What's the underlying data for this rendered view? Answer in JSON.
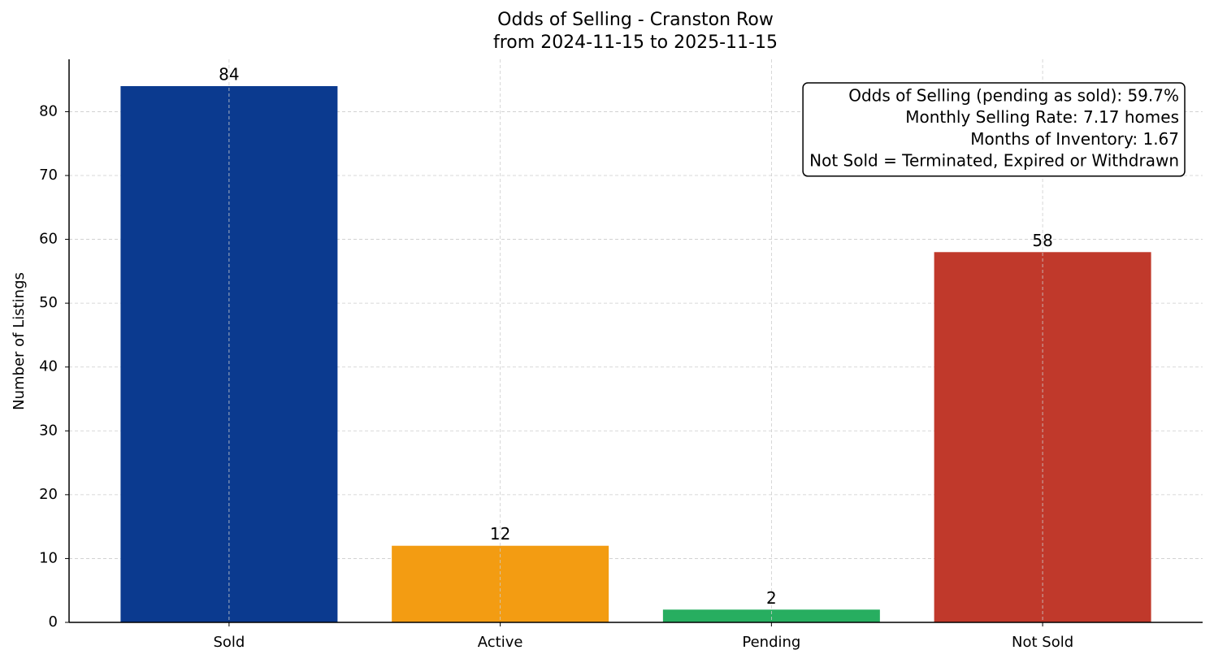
{
  "chart_data": {
    "type": "bar",
    "title": "Odds of Selling - Cranston Row",
    "subtitle": "from 2024-11-15 to 2025-11-15",
    "y_label": "Number of Listings",
    "categories": [
      "Sold",
      "Active",
      "Pending",
      "Not Sold"
    ],
    "values": [
      84,
      12,
      2,
      58
    ],
    "colors": [
      "#0b3a8f",
      "#f39c12",
      "#27ae60",
      "#c0392b"
    ],
    "ylim": [
      0,
      88.2
    ],
    "yticks": [
      0,
      10,
      20,
      30,
      40,
      50,
      60,
      70,
      80
    ],
    "grid": true,
    "annotation_lines": [
      "Odds of Selling (pending as sold): 59.7%",
      "Monthly Selling Rate: 7.17 homes",
      "Months of Inventory: 1.67",
      "Not Sold = Terminated, Expired or Withdrawn"
    ]
  }
}
